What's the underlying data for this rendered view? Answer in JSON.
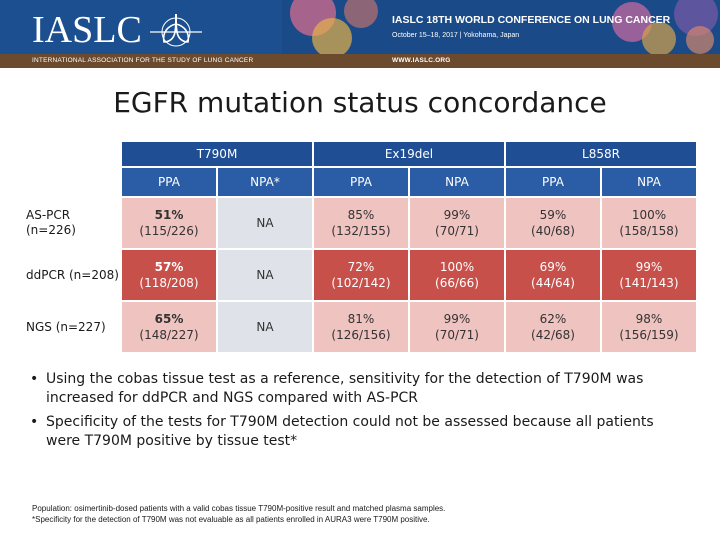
{
  "header": {
    "logo_text": "IASLC",
    "org_tagline": "INTERNATIONAL ASSOCIATION FOR THE STUDY OF LUNG CANCER",
    "conference_title": "IASLC 18TH WORLD CONFERENCE ON LUNG CANCER",
    "conference_dates": "October 15–18, 2017 | Yokohama, Japan",
    "website": "WWW.IASLC.ORG"
  },
  "slide": {
    "title": "EGFR mutation status concordance"
  },
  "table": {
    "groups": [
      "T790M",
      "Ex19del",
      "L858R"
    ],
    "subheaders": [
      "PPA",
      "NPA*",
      "PPA",
      "NPA",
      "PPA",
      "NPA"
    ],
    "rows": [
      {
        "label": "AS-PCR (n=226)",
        "cells": [
          {
            "v": "51%",
            "s": "(115/226)",
            "c": "c-pink",
            "bold": true
          },
          {
            "v": "NA",
            "s": "",
            "c": "c-na"
          },
          {
            "v": "85%",
            "s": "(132/155)",
            "c": "c-pink"
          },
          {
            "v": "99%",
            "s": "(70/71)",
            "c": "c-pink"
          },
          {
            "v": "59%",
            "s": "(40/68)",
            "c": "c-pink"
          },
          {
            "v": "100%",
            "s": "(158/158)",
            "c": "c-pink"
          }
        ]
      },
      {
        "label": "ddPCR (n=208)",
        "cells": [
          {
            "v": "57%",
            "s": "(118/208)",
            "c": "c-red",
            "bold": true
          },
          {
            "v": "NA",
            "s": "",
            "c": "c-na"
          },
          {
            "v": "72%",
            "s": "(102/142)",
            "c": "c-red"
          },
          {
            "v": "100%",
            "s": "(66/66)",
            "c": "c-red"
          },
          {
            "v": "69%",
            "s": "(44/64)",
            "c": "c-red"
          },
          {
            "v": "99%",
            "s": "(141/143)",
            "c": "c-red"
          }
        ]
      },
      {
        "label": "NGS (n=227)",
        "cells": [
          {
            "v": "65%",
            "s": "(148/227)",
            "c": "c-pink",
            "bold": true
          },
          {
            "v": "NA",
            "s": "",
            "c": "c-na"
          },
          {
            "v": "81%",
            "s": "(126/156)",
            "c": "c-pink"
          },
          {
            "v": "99%",
            "s": "(70/71)",
            "c": "c-pink"
          },
          {
            "v": "62%",
            "s": "(42/68)",
            "c": "c-pink"
          },
          {
            "v": "98%",
            "s": "(156/159)",
            "c": "c-pink"
          }
        ]
      }
    ]
  },
  "bullets": [
    "Using the cobas tissue test as a reference, sensitivity for the detection of T790M was increased for ddPCR and NGS compared with AS-PCR",
    "Specificity of the tests for T790M detection could not be assessed because all patients were T790M positive by tissue test*"
  ],
  "footnotes": [
    "Population: osimertinib-dosed patients with a valid cobas tissue T790M-positive result and matched plasma samples.",
    "*Specificity for the detection of T790M was not evaluable as all patients enrolled in AURA3 were T790M positive."
  ],
  "colors": {
    "banner": "#1c4f8f",
    "header_blue": "#1f4e94",
    "cell_pink": "#efc3c0",
    "cell_red": "#c8504b",
    "cell_grey": "#dfe2e8"
  }
}
